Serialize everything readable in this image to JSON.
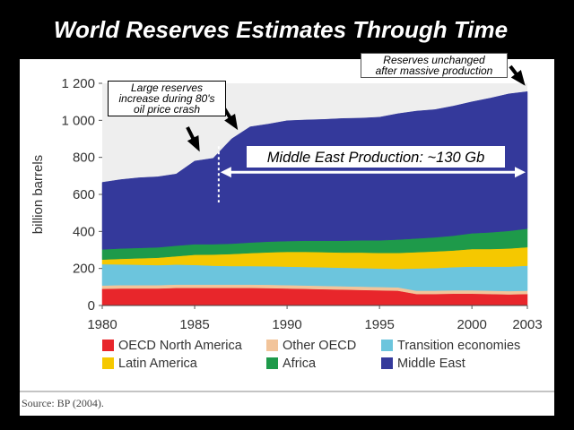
{
  "slide": {
    "title": "World Reserves Estimates Through Time",
    "source": "Source: BP (2004)."
  },
  "annotations": {
    "crash_note": [
      "Large reserves",
      "increase during 80's",
      "oil price crash"
    ],
    "unchanged_note": [
      "Reserves unchanged",
      "after massive production"
    ],
    "production_label": "Middle East Production: ~130 Gb"
  },
  "colors": {
    "OECD North America": "#e8262b",
    "Other OECD": "#f2c49a",
    "Transition economies": "#6cc5dd",
    "Latin America": "#f5c800",
    "Africa": "#1e9a4a",
    "Middle East": "#34399b",
    "plot_background": "#eeeeee"
  },
  "chart_data": {
    "type": "area",
    "stacked": true,
    "title": "World Reserves Estimates Through Time",
    "xlabel": "",
    "ylabel": "billion barrels",
    "xlim": [
      1980,
      2003
    ],
    "ylim": [
      0,
      1200
    ],
    "x_ticks": [
      "1980",
      "1985",
      "1990",
      "1995",
      "2000",
      "2003"
    ],
    "y_ticks": [
      "0",
      "200",
      "400",
      "600",
      "800",
      "1 000",
      "1 200"
    ],
    "legend_position": "bottom",
    "x": [
      1980,
      1981,
      1982,
      1983,
      1984,
      1985,
      1986,
      1987,
      1988,
      1989,
      1990,
      1991,
      1992,
      1993,
      1994,
      1995,
      1996,
      1997,
      1998,
      1999,
      2000,
      2001,
      2002,
      2003
    ],
    "series": [
      {
        "name": "OECD North America",
        "values": [
          90,
          92,
          92,
          92,
          95,
          95,
          95,
          95,
          95,
          94,
          92,
          90,
          88,
          86,
          84,
          82,
          80,
          62,
          62,
          64,
          64,
          62,
          60,
          62
        ]
      },
      {
        "name": "Other OECD",
        "values": [
          18,
          18,
          18,
          18,
          18,
          18,
          18,
          18,
          18,
          18,
          18,
          18,
          18,
          18,
          18,
          18,
          18,
          18,
          18,
          18,
          18,
          18,
          18,
          18
        ]
      },
      {
        "name": "Transition economies",
        "values": [
          115,
          112,
          110,
          108,
          108,
          106,
          102,
          100,
          100,
          100,
          100,
          100,
          100,
          100,
          100,
          100,
          100,
          120,
          122,
          125,
          128,
          130,
          132,
          135
        ]
      },
      {
        "name": "Latin America",
        "values": [
          25,
          30,
          35,
          40,
          45,
          55,
          60,
          65,
          70,
          75,
          80,
          82,
          82,
          82,
          84,
          84,
          86,
          88,
          90,
          90,
          95,
          95,
          98,
          100
        ]
      },
      {
        "name": "Africa",
        "values": [
          55,
          56,
          56,
          56,
          57,
          57,
          56,
          56,
          57,
          58,
          58,
          60,
          62,
          64,
          66,
          68,
          72,
          74,
          76,
          80,
          85,
          90,
          95,
          100
        ]
      },
      {
        "name": "Middle East",
        "values": [
          362,
          372,
          379,
          381,
          387,
          449,
          464,
          566,
          625,
          635,
          650,
          652,
          655,
          660,
          660,
          665,
          680,
          688,
          690,
          700,
          710,
          725,
          740,
          740
        ]
      }
    ]
  }
}
